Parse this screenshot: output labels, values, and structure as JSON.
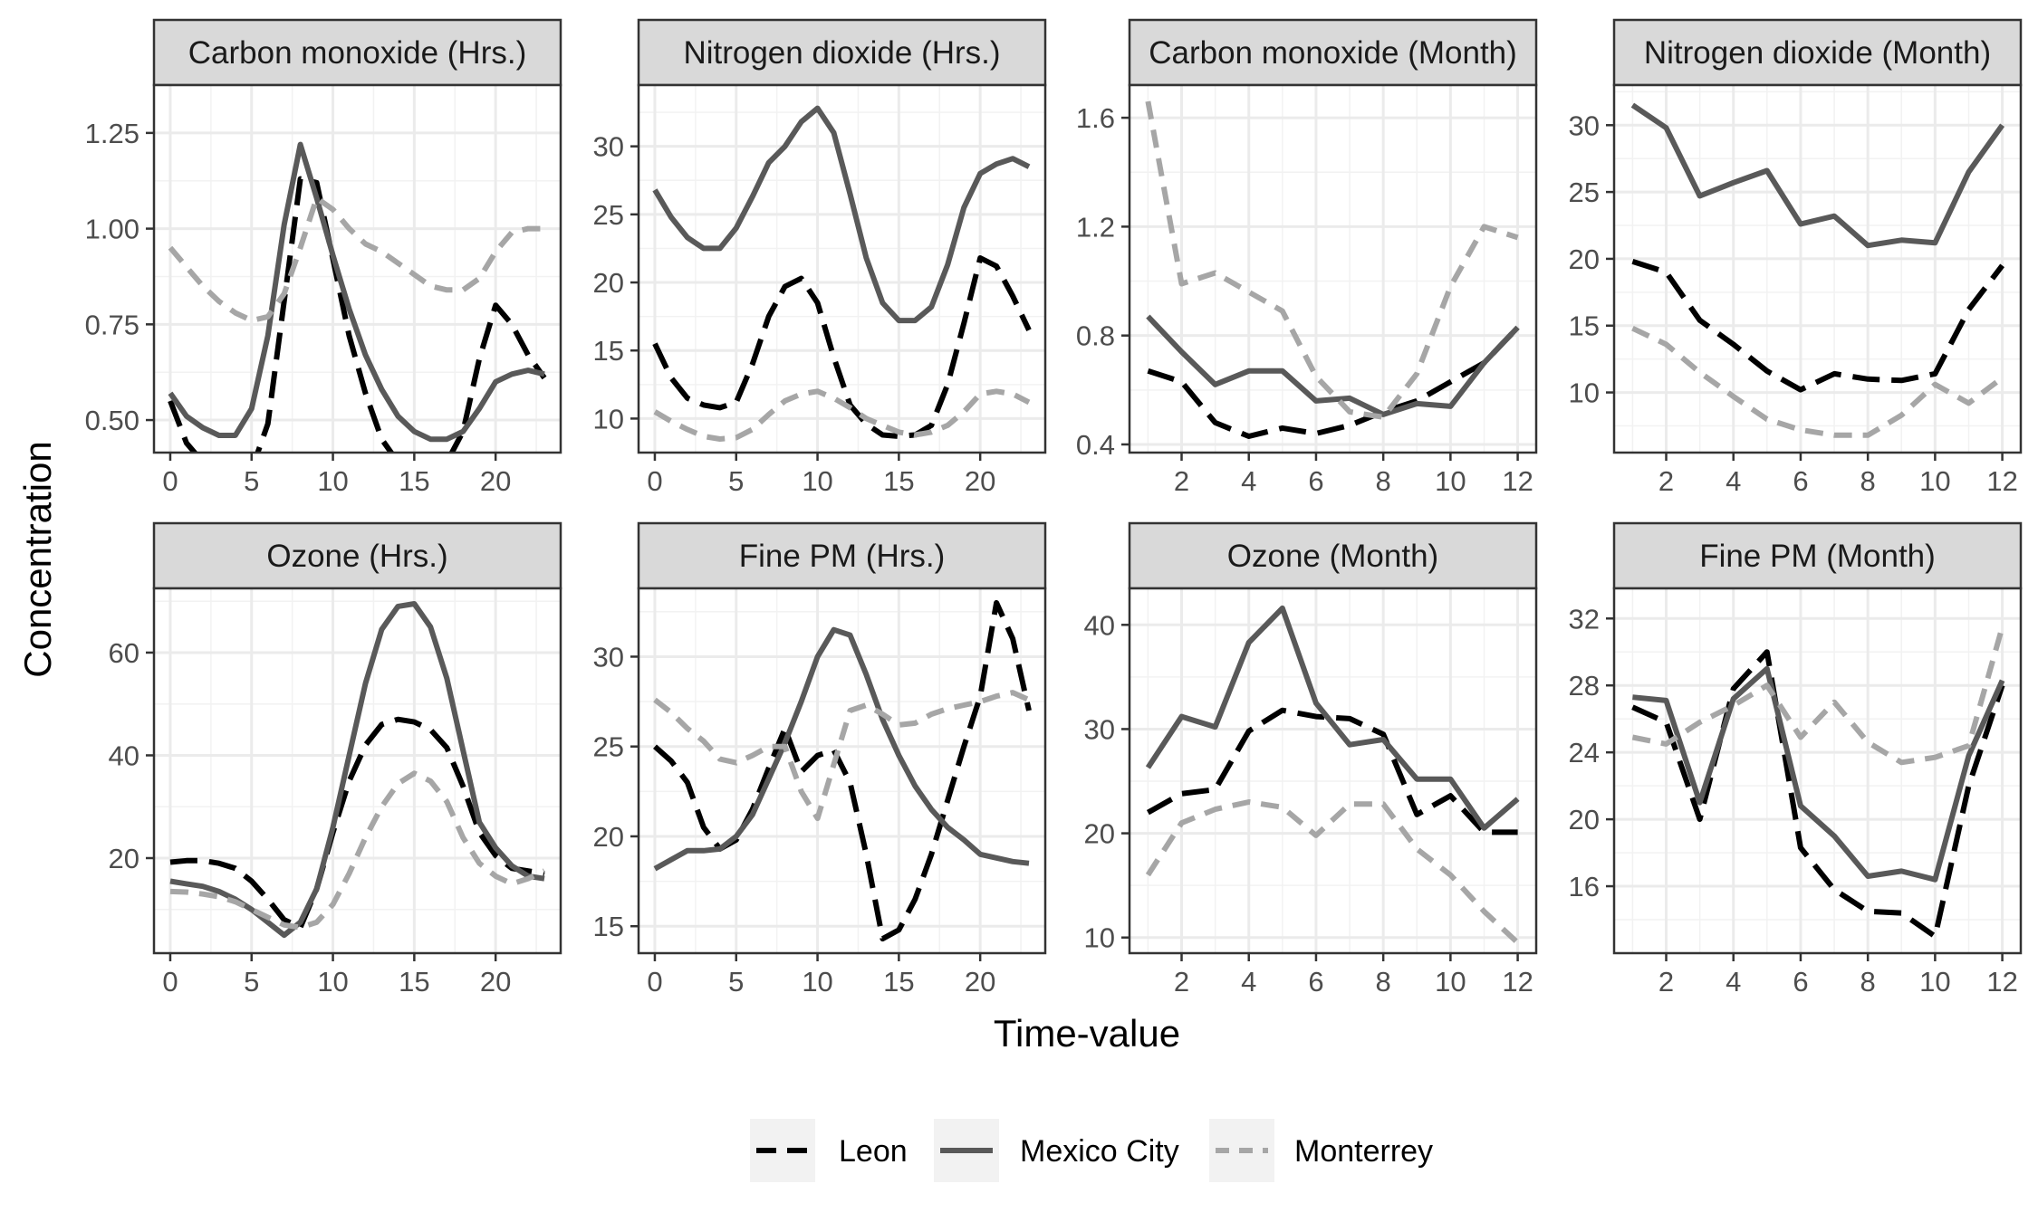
{
  "figure": {
    "xlabel": "Time-value",
    "ylabel": "Concentration"
  },
  "legend": {
    "position": "bottom",
    "items": [
      {
        "name": "Leon",
        "color": "#000000",
        "dash": "long-dash"
      },
      {
        "name": "Mexico City",
        "color": "#595959",
        "dash": "solid"
      },
      {
        "name": "Monterrey",
        "color": "#a6a6a6",
        "dash": "dashed"
      }
    ]
  },
  "chart_data": [
    {
      "type": "line",
      "title": "Carbon monoxide (Hrs.)",
      "xlim": [
        -1,
        24
      ],
      "ylim": [
        0.415,
        1.375
      ],
      "xticks": [
        0,
        5,
        10,
        15,
        20
      ],
      "yticks": [
        0.5,
        0.75,
        1.0,
        1.25
      ],
      "ytick_labels": [
        "0.50",
        "0.75",
        "1.00",
        "1.25"
      ],
      "x": [
        0,
        1,
        2,
        3,
        4,
        5,
        6,
        7,
        8,
        9,
        10,
        11,
        12,
        13,
        14,
        15,
        16,
        17,
        18,
        19,
        20,
        21,
        22,
        23
      ],
      "series": [
        {
          "name": "Leon",
          "values": [
            0.55,
            0.44,
            0.39,
            0.38,
            0.37,
            0.37,
            0.49,
            0.81,
            1.13,
            1.12,
            0.92,
            0.72,
            0.57,
            0.45,
            0.39,
            0.38,
            0.38,
            0.39,
            0.47,
            0.66,
            0.8,
            0.75,
            0.67,
            0.61
          ]
        },
        {
          "name": "Mexico City",
          "values": [
            0.57,
            0.51,
            0.48,
            0.46,
            0.46,
            0.53,
            0.72,
            1.01,
            1.22,
            1.08,
            0.93,
            0.79,
            0.67,
            0.58,
            0.51,
            0.47,
            0.45,
            0.45,
            0.47,
            0.53,
            0.6,
            0.62,
            0.63,
            0.62
          ]
        },
        {
          "name": "Monterrey",
          "values": [
            0.95,
            0.9,
            0.85,
            0.81,
            0.78,
            0.76,
            0.77,
            0.83,
            0.95,
            1.08,
            1.05,
            1.0,
            0.96,
            0.94,
            0.91,
            0.88,
            0.85,
            0.84,
            0.84,
            0.87,
            0.94,
            0.99,
            1.0,
            1.0
          ]
        }
      ]
    },
    {
      "type": "line",
      "title": "Nitrogen dioxide (Hrs.)",
      "xlim": [
        -1,
        24
      ],
      "ylim": [
        7.5,
        34.5
      ],
      "xticks": [
        0,
        5,
        10,
        15,
        20
      ],
      "yticks": [
        10,
        15,
        20,
        25,
        30
      ],
      "x": [
        0,
        1,
        2,
        3,
        4,
        5,
        6,
        7,
        8,
        9,
        10,
        11,
        12,
        13,
        14,
        15,
        16,
        17,
        18,
        19,
        20,
        21,
        22,
        23
      ],
      "series": [
        {
          "name": "Leon",
          "values": [
            15.5,
            13.0,
            11.5,
            11.0,
            10.8,
            11.2,
            14.0,
            17.5,
            19.7,
            20.3,
            18.5,
            14.5,
            11.0,
            9.6,
            8.8,
            8.7,
            8.8,
            9.5,
            12.5,
            17.0,
            21.8,
            21.2,
            19.0,
            16.5
          ]
        },
        {
          "name": "Mexico City",
          "values": [
            26.8,
            24.8,
            23.3,
            22.5,
            22.5,
            24.0,
            26.3,
            28.8,
            30.0,
            31.8,
            32.8,
            31.0,
            26.5,
            21.8,
            18.5,
            17.2,
            17.2,
            18.2,
            21.3,
            25.5,
            28.0,
            28.7,
            29.1,
            28.5
          ]
        },
        {
          "name": "Monterrey",
          "values": [
            10.5,
            9.8,
            9.2,
            8.7,
            8.5,
            8.6,
            9.2,
            10.3,
            11.3,
            11.8,
            12.0,
            11.5,
            10.8,
            10.0,
            9.5,
            9.0,
            8.8,
            9.0,
            9.5,
            10.5,
            11.8,
            12.0,
            11.8,
            11.2
          ]
        }
      ]
    },
    {
      "type": "line",
      "title": "Carbon monoxide (Month)",
      "xlim": [
        0.45,
        12.55
      ],
      "ylim": [
        0.37,
        1.72
      ],
      "xticks": [
        2,
        4,
        6,
        8,
        10,
        12
      ],
      "yticks": [
        0.4,
        0.8,
        1.2,
        1.6
      ],
      "ytick_labels": [
        "0.4",
        "0.8",
        "1.2",
        "1.6"
      ],
      "x": [
        1,
        2,
        3,
        4,
        5,
        6,
        7,
        8,
        9,
        10,
        11,
        12
      ],
      "series": [
        {
          "name": "Leon",
          "values": [
            0.67,
            0.63,
            0.48,
            0.43,
            0.46,
            0.44,
            0.47,
            0.52,
            0.56,
            0.63,
            0.7,
            0.83
          ]
        },
        {
          "name": "Mexico City",
          "values": [
            0.87,
            0.74,
            0.62,
            0.67,
            0.67,
            0.56,
            0.57,
            0.51,
            0.55,
            0.54,
            0.7,
            0.83
          ]
        },
        {
          "name": "Monterrey",
          "values": [
            1.66,
            0.99,
            1.03,
            0.96,
            0.89,
            0.65,
            0.52,
            0.5,
            0.66,
            0.98,
            1.2,
            1.16
          ]
        }
      ]
    },
    {
      "type": "line",
      "title": "Nitrogen dioxide (Month)",
      "xlim": [
        0.45,
        12.55
      ],
      "ylim": [
        5.5,
        33.0
      ],
      "xticks": [
        2,
        4,
        6,
        8,
        10,
        12
      ],
      "yticks": [
        10,
        15,
        20,
        25,
        30
      ],
      "x": [
        1,
        2,
        3,
        4,
        5,
        6,
        7,
        8,
        9,
        10,
        11,
        12
      ],
      "series": [
        {
          "name": "Leon",
          "values": [
            19.8,
            19.0,
            15.4,
            13.6,
            11.6,
            10.2,
            11.4,
            11.0,
            10.9,
            11.4,
            16.2,
            19.5
          ]
        },
        {
          "name": "Mexico City",
          "values": [
            31.5,
            29.8,
            24.7,
            25.7,
            26.6,
            22.6,
            23.2,
            21.0,
            21.4,
            21.2,
            26.5,
            30.0
          ]
        },
        {
          "name": "Monterrey",
          "values": [
            14.8,
            13.6,
            11.5,
            9.7,
            8.0,
            7.2,
            6.8,
            6.8,
            8.3,
            10.6,
            9.2,
            11.1
          ]
        }
      ]
    },
    {
      "type": "line",
      "title": "Ozone (Hrs.)",
      "xlim": [
        -1,
        24
      ],
      "ylim": [
        1.5,
        72.5
      ],
      "xticks": [
        0,
        5,
        10,
        15,
        20
      ],
      "yticks": [
        20,
        40,
        60
      ],
      "x": [
        0,
        1,
        2,
        3,
        4,
        5,
        6,
        7,
        8,
        9,
        10,
        11,
        12,
        13,
        14,
        15,
        16,
        17,
        18,
        19,
        20,
        21,
        22,
        23
      ],
      "series": [
        {
          "name": "Leon",
          "values": [
            19.2,
            19.5,
            19.5,
            19.0,
            18.0,
            15.5,
            12.0,
            8.0,
            6.5,
            14.0,
            25.0,
            35.0,
            42.0,
            46.0,
            47.0,
            46.5,
            45.0,
            41.5,
            34.0,
            25.0,
            20.5,
            18.0,
            17.5,
            17.0
          ]
        },
        {
          "name": "Mexico City",
          "values": [
            15.5,
            15.0,
            14.5,
            13.5,
            12.0,
            10.0,
            7.5,
            5.0,
            7.5,
            14.0,
            26.0,
            40.0,
            54.0,
            64.5,
            69.0,
            69.5,
            65.0,
            55.0,
            41.0,
            27.0,
            22.0,
            18.5,
            16.5,
            16.0
          ]
        },
        {
          "name": "Monterrey",
          "values": [
            13.5,
            13.4,
            13.0,
            12.5,
            11.5,
            10.0,
            8.5,
            7.0,
            6.5,
            7.5,
            11.0,
            17.0,
            24.0,
            30.0,
            34.5,
            36.5,
            35.0,
            31.0,
            24.0,
            19.0,
            16.5,
            15.0,
            16.0,
            17.5
          ]
        }
      ]
    },
    {
      "type": "line",
      "title": "Fine PM (Hrs.)",
      "xlim": [
        -1,
        24
      ],
      "ylim": [
        13.5,
        33.8
      ],
      "xticks": [
        0,
        5,
        10,
        15,
        20
      ],
      "yticks": [
        15,
        20,
        25,
        30
      ],
      "x": [
        0,
        1,
        2,
        3,
        4,
        5,
        6,
        7,
        8,
        9,
        10,
        11,
        12,
        13,
        14,
        15,
        16,
        17,
        18,
        19,
        20,
        21,
        22,
        23
      ],
      "series": [
        {
          "name": "Leon",
          "values": [
            25.0,
            24.2,
            23.0,
            20.5,
            19.3,
            19.8,
            21.5,
            23.8,
            26.0,
            23.6,
            24.5,
            24.8,
            23.0,
            19.0,
            14.3,
            14.8,
            16.5,
            19.0,
            22.0,
            25.0,
            27.8,
            33.0,
            31.0,
            27.0
          ]
        },
        {
          "name": "Mexico City",
          "values": [
            18.2,
            18.7,
            19.2,
            19.2,
            19.3,
            20.0,
            21.2,
            23.2,
            25.2,
            27.5,
            30.0,
            31.5,
            31.2,
            29.0,
            26.5,
            24.5,
            22.8,
            21.5,
            20.5,
            19.8,
            19.0,
            18.8,
            18.6,
            18.5
          ]
        },
        {
          "name": "Monterrey",
          "values": [
            27.6,
            26.9,
            26.0,
            25.3,
            24.3,
            24.1,
            24.5,
            25.0,
            25.0,
            22.5,
            21.0,
            24.0,
            27.0,
            27.3,
            26.8,
            26.2,
            26.3,
            26.8,
            27.1,
            27.3,
            27.5,
            27.8,
            28.0,
            27.6
          ]
        }
      ]
    },
    {
      "type": "line",
      "title": "Ozone (Month)",
      "xlim": [
        0.45,
        12.55
      ],
      "ylim": [
        8.5,
        43.5
      ],
      "xticks": [
        2,
        4,
        6,
        8,
        10,
        12
      ],
      "yticks": [
        10,
        20,
        30,
        40
      ],
      "x": [
        1,
        2,
        3,
        4,
        5,
        6,
        7,
        8,
        9,
        10,
        11,
        12
      ],
      "series": [
        {
          "name": "Leon",
          "values": [
            22.0,
            23.8,
            24.2,
            29.8,
            31.8,
            31.2,
            31.0,
            29.5,
            21.8,
            23.6,
            20.1,
            20.1
          ]
        },
        {
          "name": "Mexico City",
          "values": [
            26.3,
            31.2,
            30.2,
            38.3,
            41.6,
            32.5,
            28.5,
            29.0,
            25.2,
            25.2,
            20.5,
            23.3
          ]
        },
        {
          "name": "Monterrey",
          "values": [
            16.0,
            21.0,
            22.3,
            23.0,
            22.5,
            19.8,
            22.8,
            22.8,
            18.5,
            16.0,
            12.5,
            9.5
          ]
        }
      ]
    },
    {
      "type": "line",
      "title": "Fine PM (Month)",
      "xlim": [
        0.45,
        12.55
      ],
      "ylim": [
        12.0,
        33.8
      ],
      "xticks": [
        2,
        4,
        6,
        8,
        10,
        12
      ],
      "yticks": [
        16,
        20,
        24,
        28,
        32
      ],
      "x": [
        1,
        2,
        3,
        4,
        5,
        6,
        7,
        8,
        9,
        10,
        11,
        12
      ],
      "series": [
        {
          "name": "Leon",
          "values": [
            26.7,
            25.8,
            20.0,
            27.8,
            30.0,
            18.3,
            15.8,
            14.5,
            14.4,
            13.0,
            22.0,
            28.0
          ]
        },
        {
          "name": "Mexico City",
          "values": [
            27.3,
            27.1,
            21.0,
            27.2,
            29.0,
            20.8,
            19.0,
            16.6,
            16.9,
            16.4,
            23.8,
            28.3
          ]
        },
        {
          "name": "Monterrey",
          "values": [
            24.9,
            24.5,
            25.8,
            26.8,
            28.0,
            24.9,
            27.0,
            24.6,
            23.4,
            23.7,
            24.4,
            31.5
          ]
        }
      ]
    }
  ]
}
